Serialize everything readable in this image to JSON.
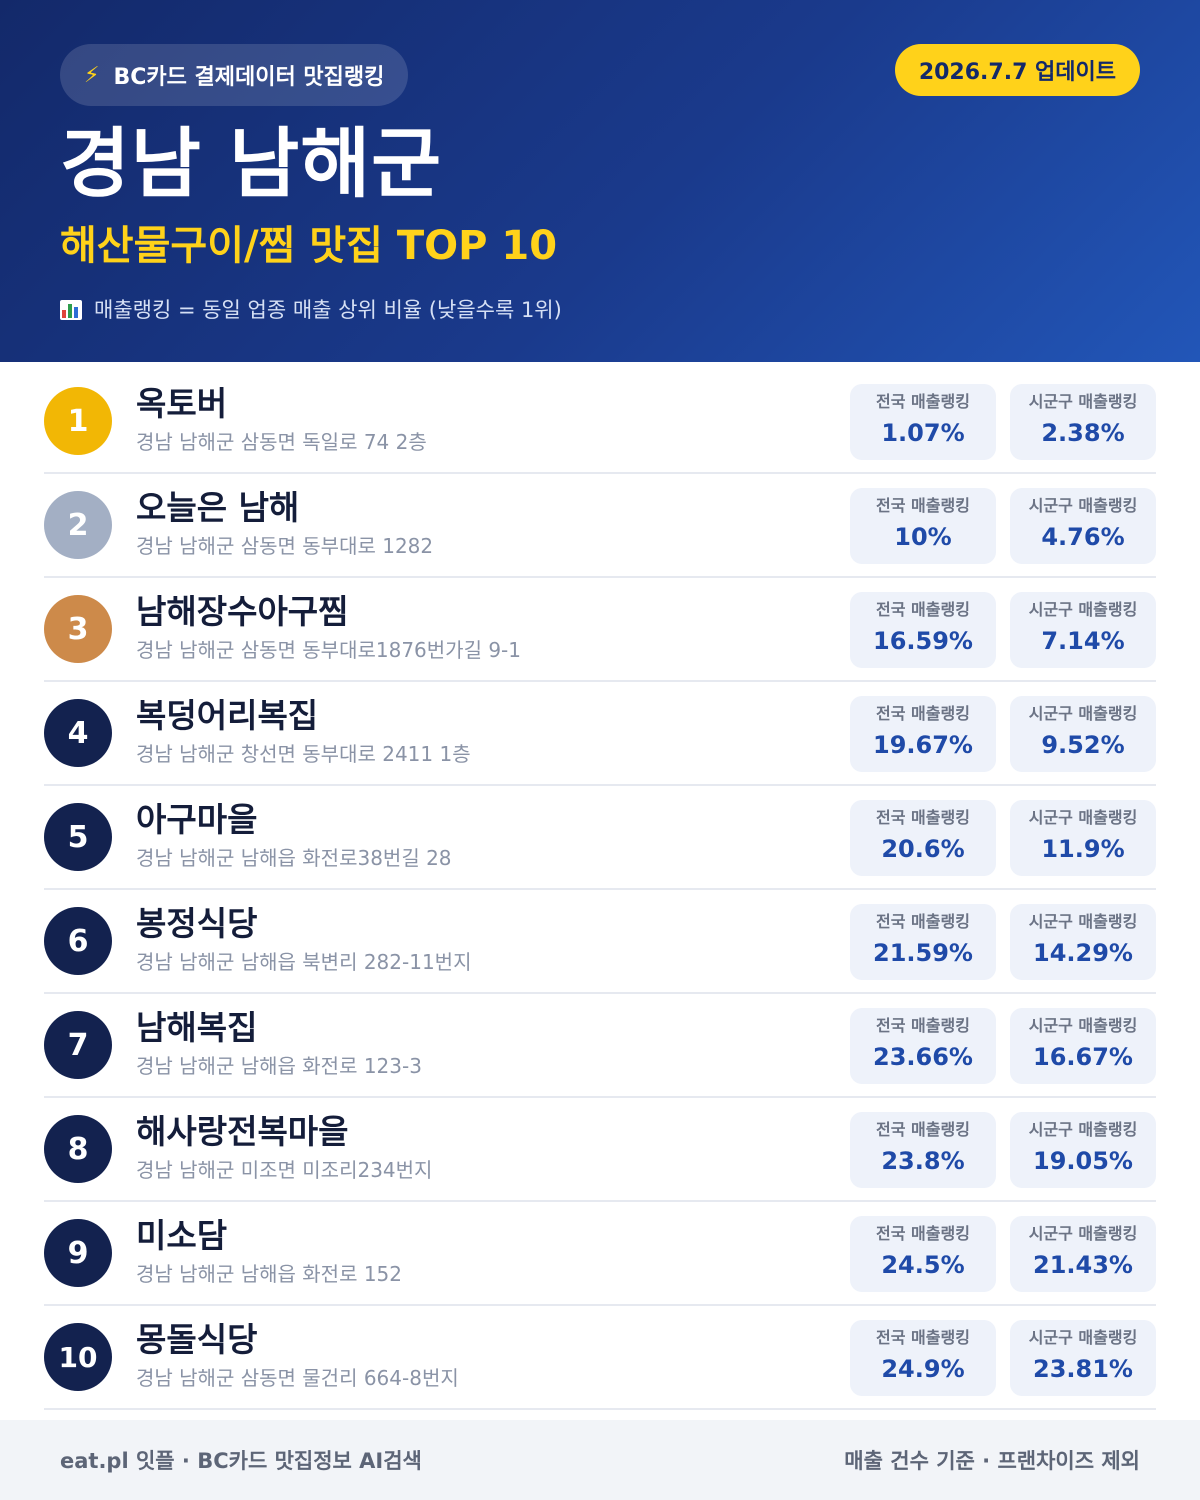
{
  "header": {
    "brand_icon": "lightning-bolt-icon",
    "brand": "BC카드 결제데이터 맛집랭킹",
    "date": "2026.7.7 업데이트",
    "region": "경남 남해군",
    "subtitle": "해산물구이/찜 맛집 TOP 10",
    "note_icon": "bar-chart-icon",
    "note": "매출랭킹 = 동일 업종 매출 상위 비율 (낮을수록 1위)"
  },
  "colors": {
    "gold": "#f2b705",
    "silver": "#a3afc4",
    "bronze": "#cd8a4a",
    "navy": "#13224f",
    "accent_yellow": "#ffd21a",
    "value_blue": "#1f4aa8"
  },
  "stat_labels": {
    "national": "전국 매출랭킹",
    "local": "시군구 매출랭킹"
  },
  "items": [
    {
      "rank": "1",
      "name": "옥토버",
      "address": "경남 남해군 삼동면 독일로 74 2층",
      "national": "1.07%",
      "local": "2.38%",
      "badge_color": "#f2b705"
    },
    {
      "rank": "2",
      "name": "오늘은 남해",
      "address": "경남 남해군 삼동면 동부대로 1282",
      "national": "10%",
      "local": "4.76%",
      "badge_color": "#a3afc4"
    },
    {
      "rank": "3",
      "name": "남해장수아구찜",
      "address": "경남 남해군 삼동면 동부대로1876번가길 9-1",
      "national": "16.59%",
      "local": "7.14%",
      "badge_color": "#cd8a4a"
    },
    {
      "rank": "4",
      "name": "복덩어리복집",
      "address": "경남 남해군 창선면 동부대로 2411 1층",
      "national": "19.67%",
      "local": "9.52%",
      "badge_color": "#13224f"
    },
    {
      "rank": "5",
      "name": "아구마을",
      "address": "경남 남해군 남해읍 화전로38번길 28",
      "national": "20.6%",
      "local": "11.9%",
      "badge_color": "#13224f"
    },
    {
      "rank": "6",
      "name": "봉정식당",
      "address": "경남 남해군 남해읍 북변리 282-11번지",
      "national": "21.59%",
      "local": "14.29%",
      "badge_color": "#13224f"
    },
    {
      "rank": "7",
      "name": "남해복집",
      "address": "경남 남해군 남해읍 화전로 123-3",
      "national": "23.66%",
      "local": "16.67%",
      "badge_color": "#13224f"
    },
    {
      "rank": "8",
      "name": "해사랑전복마을",
      "address": "경남 남해군 미조면 미조리234번지",
      "national": "23.8%",
      "local": "19.05%",
      "badge_color": "#13224f"
    },
    {
      "rank": "9",
      "name": "미소담",
      "address": "경남 남해군 남해읍 화전로 152",
      "national": "24.5%",
      "local": "21.43%",
      "badge_color": "#13224f"
    },
    {
      "rank": "10",
      "name": "몽돌식당",
      "address": "경남 남해군 삼동면 물건리 664-8번지",
      "national": "24.9%",
      "local": "23.81%",
      "badge_color": "#13224f"
    }
  ],
  "footer": {
    "left": "eat.pl 잇플 · BC카드 맛집정보 AI검색",
    "right": "매출 건수 기준 · 프랜차이즈 제외"
  }
}
